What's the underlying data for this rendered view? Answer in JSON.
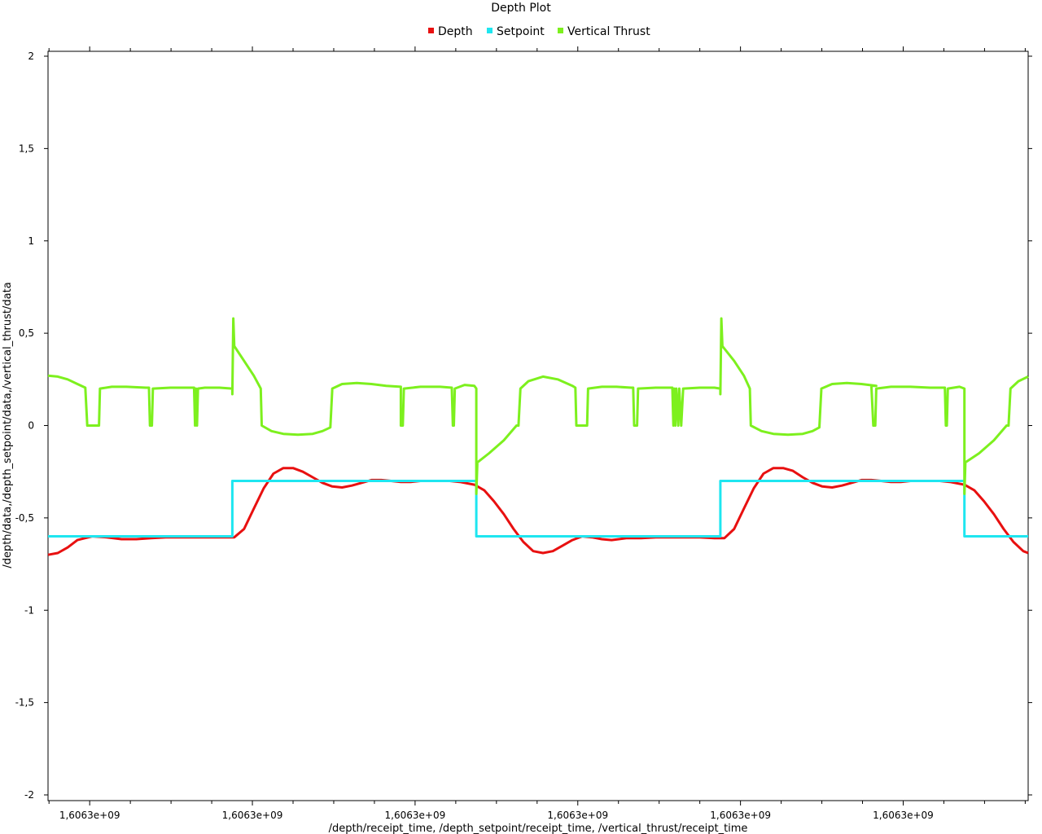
{
  "chart_data": {
    "type": "line",
    "title": "Depth Plot",
    "xlabel": "/depth/receipt_time, /depth_setpoint/receipt_time, /vertical_thrust/receipt_time",
    "ylabel": "/depth/data,/depth_setpoint/data,/vertical_thrust/data",
    "ylim": [
      -2,
      2
    ],
    "xlim": [
      0,
      1
    ],
    "grid": false,
    "legend_position": "top-center",
    "x_tick_labels": [
      "1,6063e+09",
      "1,6063e+09",
      "1,6063e+09",
      "1,6063e+09",
      "1,6063e+09",
      "1,6063e+09"
    ],
    "x_tick_values": [
      0.0425,
      0.2085,
      0.3745,
      0.5405,
      0.7065,
      0.8725
    ],
    "y_ticks": [
      {
        "value": 2,
        "label": "2"
      },
      {
        "value": 1.5,
        "label": "1,5"
      },
      {
        "value": 1,
        "label": "1"
      },
      {
        "value": 0.5,
        "label": "0,5"
      },
      {
        "value": 0,
        "label": "0"
      },
      {
        "value": -0.5,
        "label": "-0,5"
      },
      {
        "value": -1,
        "label": "-1"
      },
      {
        "value": -1.5,
        "label": "-1,5"
      },
      {
        "value": -2,
        "label": "-2"
      }
    ],
    "series": [
      {
        "name": "Depth",
        "color": "#e81010",
        "points": [
          [
            0.0,
            -0.7
          ],
          [
            0.01,
            -0.69
          ],
          [
            0.02,
            -0.66
          ],
          [
            0.03,
            -0.62
          ],
          [
            0.045,
            -0.6
          ],
          [
            0.06,
            -0.605
          ],
          [
            0.075,
            -0.615
          ],
          [
            0.09,
            -0.615
          ],
          [
            0.105,
            -0.61
          ],
          [
            0.12,
            -0.605
          ],
          [
            0.135,
            -0.605
          ],
          [
            0.15,
            -0.605
          ],
          [
            0.165,
            -0.605
          ],
          [
            0.18,
            -0.605
          ],
          [
            0.19,
            -0.605
          ],
          [
            0.2,
            -0.56
          ],
          [
            0.21,
            -0.45
          ],
          [
            0.22,
            -0.34
          ],
          [
            0.23,
            -0.26
          ],
          [
            0.24,
            -0.23
          ],
          [
            0.25,
            -0.23
          ],
          [
            0.26,
            -0.25
          ],
          [
            0.27,
            -0.28
          ],
          [
            0.28,
            -0.31
          ],
          [
            0.29,
            -0.33
          ],
          [
            0.3,
            -0.335
          ],
          [
            0.31,
            -0.325
          ],
          [
            0.32,
            -0.31
          ],
          [
            0.33,
            -0.295
          ],
          [
            0.34,
            -0.295
          ],
          [
            0.35,
            -0.3
          ],
          [
            0.36,
            -0.305
          ],
          [
            0.37,
            -0.305
          ],
          [
            0.38,
            -0.3
          ],
          [
            0.39,
            -0.3
          ],
          [
            0.4,
            -0.3
          ],
          [
            0.41,
            -0.3
          ],
          [
            0.42,
            -0.305
          ],
          [
            0.435,
            -0.32
          ],
          [
            0.445,
            -0.35
          ],
          [
            0.455,
            -0.41
          ],
          [
            0.465,
            -0.48
          ],
          [
            0.475,
            -0.56
          ],
          [
            0.485,
            -0.63
          ],
          [
            0.495,
            -0.68
          ],
          [
            0.505,
            -0.69
          ],
          [
            0.515,
            -0.68
          ],
          [
            0.525,
            -0.65
          ],
          [
            0.535,
            -0.62
          ],
          [
            0.545,
            -0.6
          ],
          [
            0.555,
            -0.605
          ],
          [
            0.565,
            -0.615
          ],
          [
            0.575,
            -0.62
          ],
          [
            0.59,
            -0.61
          ],
          [
            0.605,
            -0.61
          ],
          [
            0.62,
            -0.605
          ],
          [
            0.635,
            -0.605
          ],
          [
            0.65,
            -0.605
          ],
          [
            0.665,
            -0.605
          ],
          [
            0.68,
            -0.61
          ],
          [
            0.69,
            -0.61
          ],
          [
            0.7,
            -0.56
          ],
          [
            0.71,
            -0.45
          ],
          [
            0.72,
            -0.34
          ],
          [
            0.73,
            -0.26
          ],
          [
            0.74,
            -0.23
          ],
          [
            0.75,
            -0.23
          ],
          [
            0.76,
            -0.245
          ],
          [
            0.77,
            -0.28
          ],
          [
            0.78,
            -0.31
          ],
          [
            0.79,
            -0.33
          ],
          [
            0.8,
            -0.335
          ],
          [
            0.81,
            -0.325
          ],
          [
            0.82,
            -0.31
          ],
          [
            0.83,
            -0.295
          ],
          [
            0.84,
            -0.295
          ],
          [
            0.85,
            -0.3
          ],
          [
            0.86,
            -0.305
          ],
          [
            0.87,
            -0.305
          ],
          [
            0.88,
            -0.3
          ],
          [
            0.89,
            -0.3
          ],
          [
            0.9,
            -0.3
          ],
          [
            0.91,
            -0.3
          ],
          [
            0.92,
            -0.305
          ],
          [
            0.935,
            -0.32
          ],
          [
            0.945,
            -0.35
          ],
          [
            0.955,
            -0.41
          ],
          [
            0.965,
            -0.48
          ],
          [
            0.975,
            -0.56
          ],
          [
            0.985,
            -0.63
          ],
          [
            0.995,
            -0.68
          ],
          [
            1.0,
            -0.69
          ]
        ]
      },
      {
        "name": "Setpoint",
        "color": "#1ee6f0",
        "points": [
          [
            0.0,
            -0.6
          ],
          [
            0.188,
            -0.6
          ],
          [
            0.188,
            -0.3
          ],
          [
            0.437,
            -0.3
          ],
          [
            0.437,
            -0.6
          ],
          [
            0.686,
            -0.6
          ],
          [
            0.686,
            -0.3
          ],
          [
            0.935,
            -0.3
          ],
          [
            0.935,
            -0.6
          ],
          [
            1.0,
            -0.6
          ]
        ]
      },
      {
        "name": "Vertical Thrust",
        "color": "#7df01e",
        "points": [
          [
            0.0,
            0.27
          ],
          [
            0.01,
            0.265
          ],
          [
            0.02,
            0.25
          ],
          [
            0.03,
            0.225
          ],
          [
            0.038,
            0.205
          ],
          [
            0.04,
            0.0
          ],
          [
            0.052,
            0.0
          ],
          [
            0.053,
            0.2
          ],
          [
            0.065,
            0.21
          ],
          [
            0.08,
            0.21
          ],
          [
            0.1,
            0.205
          ],
          [
            0.103,
            0.205
          ],
          [
            0.104,
            0.0
          ],
          [
            0.106,
            0.0
          ],
          [
            0.107,
            0.2
          ],
          [
            0.125,
            0.205
          ],
          [
            0.145,
            0.205
          ],
          [
            0.149,
            0.205
          ],
          [
            0.15,
            0.0
          ],
          [
            0.151,
            0.2
          ],
          [
            0.152,
            0.0
          ],
          [
            0.153,
            0.2
          ],
          [
            0.16,
            0.205
          ],
          [
            0.175,
            0.205
          ],
          [
            0.188,
            0.2
          ],
          [
            0.188,
            0.17
          ],
          [
            0.189,
            0.58
          ],
          [
            0.19,
            0.43
          ],
          [
            0.2,
            0.35
          ],
          [
            0.21,
            0.27
          ],
          [
            0.217,
            0.2
          ],
          [
            0.218,
            0.0
          ],
          [
            0.228,
            -0.03
          ],
          [
            0.24,
            -0.045
          ],
          [
            0.255,
            -0.05
          ],
          [
            0.27,
            -0.045
          ],
          [
            0.28,
            -0.03
          ],
          [
            0.288,
            -0.01
          ],
          [
            0.29,
            0.2
          ],
          [
            0.3,
            0.225
          ],
          [
            0.315,
            0.23
          ],
          [
            0.33,
            0.225
          ],
          [
            0.345,
            0.215
          ],
          [
            0.36,
            0.21
          ],
          [
            0.36,
            0.0
          ],
          [
            0.362,
            0.0
          ],
          [
            0.363,
            0.2
          ],
          [
            0.38,
            0.21
          ],
          [
            0.4,
            0.21
          ],
          [
            0.412,
            0.205
          ],
          [
            0.413,
            0.0
          ],
          [
            0.414,
            0.0
          ],
          [
            0.415,
            0.2
          ],
          [
            0.425,
            0.22
          ],
          [
            0.435,
            0.215
          ],
          [
            0.437,
            0.2
          ],
          [
            0.437,
            -0.37
          ],
          [
            0.438,
            -0.2
          ],
          [
            0.45,
            -0.15
          ],
          [
            0.465,
            -0.08
          ],
          [
            0.478,
            0.0
          ],
          [
            0.48,
            0.0
          ],
          [
            0.482,
            0.2
          ],
          [
            0.49,
            0.24
          ],
          [
            0.505,
            0.265
          ],
          [
            0.52,
            0.25
          ],
          [
            0.535,
            0.215
          ],
          [
            0.538,
            0.205
          ],
          [
            0.539,
            0.0
          ],
          [
            0.55,
            0.0
          ],
          [
            0.551,
            0.2
          ],
          [
            0.565,
            0.21
          ],
          [
            0.58,
            0.21
          ],
          [
            0.595,
            0.205
          ],
          [
            0.597,
            0.205
          ],
          [
            0.598,
            0.0
          ],
          [
            0.601,
            0.0
          ],
          [
            0.602,
            0.2
          ],
          [
            0.62,
            0.205
          ],
          [
            0.637,
            0.205
          ],
          [
            0.638,
            0.0
          ],
          [
            0.639,
            0.2
          ],
          [
            0.64,
            0.0
          ],
          [
            0.641,
            0.2
          ],
          [
            0.643,
            0.0
          ],
          [
            0.644,
            0.2
          ],
          [
            0.646,
            0.0
          ],
          [
            0.648,
            0.2
          ],
          [
            0.665,
            0.205
          ],
          [
            0.68,
            0.205
          ],
          [
            0.686,
            0.2
          ],
          [
            0.686,
            0.17
          ],
          [
            0.687,
            0.58
          ],
          [
            0.688,
            0.43
          ],
          [
            0.7,
            0.35
          ],
          [
            0.71,
            0.27
          ],
          [
            0.716,
            0.2
          ],
          [
            0.717,
            0.0
          ],
          [
            0.728,
            -0.03
          ],
          [
            0.74,
            -0.045
          ],
          [
            0.755,
            -0.05
          ],
          [
            0.77,
            -0.045
          ],
          [
            0.78,
            -0.03
          ],
          [
            0.787,
            -0.01
          ],
          [
            0.789,
            0.2
          ],
          [
            0.8,
            0.225
          ],
          [
            0.815,
            0.23
          ],
          [
            0.83,
            0.225
          ],
          [
            0.845,
            0.215
          ],
          [
            0.84,
            0.215
          ],
          [
            0.842,
            0.0
          ],
          [
            0.844,
            0.0
          ],
          [
            0.845,
            0.2
          ],
          [
            0.86,
            0.21
          ],
          [
            0.88,
            0.21
          ],
          [
            0.9,
            0.205
          ],
          [
            0.915,
            0.205
          ],
          [
            0.916,
            0.0
          ],
          [
            0.917,
            0.0
          ],
          [
            0.918,
            0.2
          ],
          [
            0.93,
            0.21
          ],
          [
            0.935,
            0.2
          ],
          [
            0.935,
            -0.37
          ],
          [
            0.936,
            -0.2
          ],
          [
            0.95,
            -0.15
          ],
          [
            0.965,
            -0.08
          ],
          [
            0.978,
            0.0
          ],
          [
            0.98,
            0.0
          ],
          [
            0.982,
            0.2
          ],
          [
            0.99,
            0.24
          ],
          [
            1.0,
            0.265
          ]
        ]
      }
    ]
  }
}
